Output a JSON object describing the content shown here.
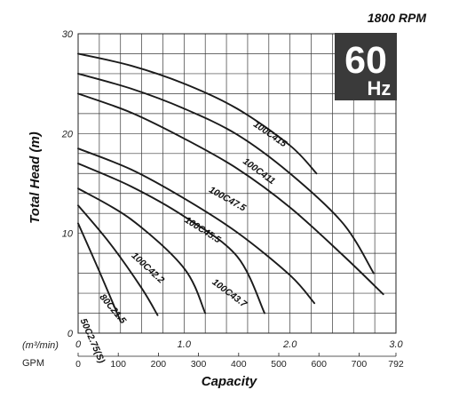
{
  "chart_data": {
    "type": "line",
    "rpm_label": "1800 RPM",
    "badge": {
      "big": "60",
      "small": "Hz",
      "bg": "#3a3a3a",
      "fg": "#ffffff"
    },
    "ylabel": "Total Head (m)",
    "xlabel": "Capacity",
    "x_unit_label": "(m³/min)",
    "gpm_label": "GPM",
    "xlim": [
      0,
      3.0
    ],
    "ylim": [
      0,
      30
    ],
    "x_ticks": [
      {
        "value": 0,
        "label": "0"
      },
      {
        "value": 1.0,
        "label": "1.0"
      },
      {
        "value": 2.0,
        "label": "2.0"
      },
      {
        "value": 3.0,
        "label": "3.0"
      }
    ],
    "y_ticks": [
      {
        "value": 0,
        "label": "0"
      },
      {
        "value": 10,
        "label": "10"
      },
      {
        "value": 20,
        "label": "20"
      },
      {
        "value": 30,
        "label": "30"
      }
    ],
    "gpm_ticks": [
      {
        "value": 0,
        "label": "0"
      },
      {
        "value": 100,
        "label": "100"
      },
      {
        "value": 200,
        "label": "200"
      },
      {
        "value": 300,
        "label": "300"
      },
      {
        "value": 400,
        "label": "400"
      },
      {
        "value": 500,
        "label": "500"
      },
      {
        "value": 600,
        "label": "600"
      },
      {
        "value": 700,
        "label": "700"
      },
      {
        "value": 792,
        "label": "792"
      }
    ],
    "grid": true,
    "series": [
      {
        "name": "100C415",
        "x": [
          0,
          0.5,
          1.0,
          1.5,
          2.0,
          2.25
        ],
        "y": [
          28,
          26.8,
          25.0,
          22.5,
          18.8,
          16.0
        ],
        "label_at": 1.65,
        "label_y": 20.8
      },
      {
        "name": "100C411",
        "x": [
          0,
          0.5,
          1.0,
          1.5,
          2.0,
          2.5,
          2.79
        ],
        "y": [
          26,
          24.5,
          22.5,
          19.9,
          16.0,
          11.0,
          6.0
        ],
        "label_at": 1.55,
        "label_y": 17.1
      },
      {
        "name": "100C47.5",
        "x": [
          0,
          0.5,
          1.0,
          1.5,
          2.0,
          2.5,
          2.88
        ],
        "y": [
          24,
          22.1,
          19.5,
          16.5,
          12.6,
          7.8,
          3.9
        ],
        "label_at": 1.23,
        "label_y": 14.2
      },
      {
        "name": "100C45.5",
        "x": [
          0,
          0.5,
          1.0,
          1.5,
          2.0,
          2.23
        ],
        "y": [
          18.5,
          16.4,
          13.5,
          10.1,
          5.8,
          3.0
        ],
        "label_at": 1.0,
        "label_y": 11.2
      },
      {
        "name": "100C43.7",
        "x": [
          0,
          0.5,
          1.0,
          1.5,
          1.76
        ],
        "y": [
          17,
          14.7,
          11.7,
          7.7,
          2.0
        ],
        "label_at": 1.26,
        "label_y": 5.0
      },
      {
        "name": "100C42.2",
        "x": [
          0,
          0.5,
          1.0,
          1.2
        ],
        "y": [
          14.5,
          11.4,
          6.5,
          2.0
        ],
        "label_at": 0.5,
        "label_y": 7.7
      },
      {
        "name": "80C21.5",
        "x": [
          0,
          0.3,
          0.6,
          0.75
        ],
        "y": [
          12.8,
          9.0,
          4.5,
          1.8
        ],
        "label_at": 0.2,
        "label_y": 3.6
      },
      {
        "name": "50C2.75(S)",
        "x": [
          0,
          0.2,
          0.4
        ],
        "y": [
          11,
          6.2,
          1.2
        ],
        "label_at": 0.02,
        "label_y": 1.3
      }
    ]
  }
}
